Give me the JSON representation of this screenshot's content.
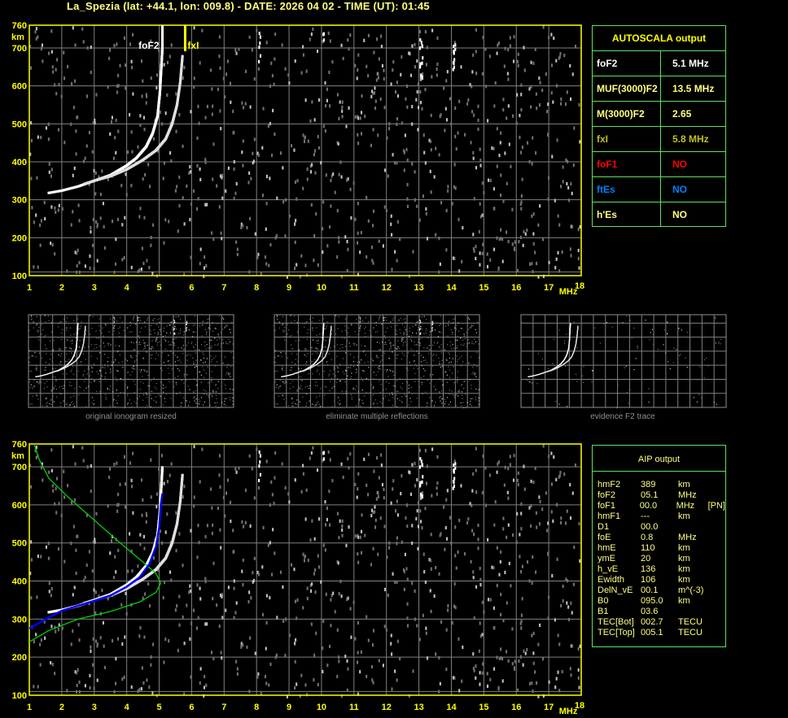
{
  "title": "La_Spezia (lat: +44.1, lon: 009.8) - DATE: 2026 04 02 - TIME (UT): 01:45",
  "colors": {
    "axis": "#ffff00",
    "grid": "#808080",
    "panel_border": "#60e060",
    "trace": "#ffffff",
    "fit": "#0000ff",
    "profile": "#00d000"
  },
  "chart_data": [
    {
      "type": "scatter",
      "name_hint": "ionogram",
      "xlabel": "MHz",
      "ylabel": "km",
      "xlim": [
        1,
        18
      ],
      "ylim": [
        100,
        760
      ],
      "xticks": [
        "1",
        "2",
        "3",
        "4",
        "5",
        "6",
        "7",
        "8",
        "9",
        "10",
        "11",
        "12",
        "13",
        "14",
        "15",
        "16",
        "17",
        "18"
      ],
      "yticks": [
        "100",
        "200",
        "300",
        "400",
        "500",
        "600",
        "700",
        "760"
      ],
      "grid": true,
      "markers": [
        {
          "label": "foF2",
          "x": 5.1,
          "color": "#ffffff"
        },
        {
          "label": "fxI",
          "x": 5.8,
          "color": "#ffff00"
        }
      ],
      "o_trace": [
        [
          1.6,
          318
        ],
        [
          2.0,
          324
        ],
        [
          2.5,
          335
        ],
        [
          3.0,
          350
        ],
        [
          3.5,
          365
        ],
        [
          4.0,
          390
        ],
        [
          4.3,
          410
        ],
        [
          4.6,
          440
        ],
        [
          4.8,
          475
        ],
        [
          4.95,
          520
        ],
        [
          5.02,
          580
        ],
        [
          5.06,
          640
        ],
        [
          5.1,
          700
        ]
      ],
      "x_trace": [
        [
          2.7,
          342
        ],
        [
          3.0,
          350
        ],
        [
          3.5,
          362
        ],
        [
          4.0,
          380
        ],
        [
          4.5,
          405
        ],
        [
          4.9,
          430
        ],
        [
          5.2,
          460
        ],
        [
          5.4,
          500
        ],
        [
          5.55,
          550
        ],
        [
          5.65,
          610
        ],
        [
          5.72,
          680
        ]
      ]
    },
    {
      "type": "line",
      "fit_trace": [
        [
          1.0,
          275
        ],
        [
          1.5,
          300
        ],
        [
          2.0,
          322
        ],
        [
          2.5,
          335
        ],
        [
          3.0,
          348
        ],
        [
          3.5,
          362
        ],
        [
          4.0,
          385
        ],
        [
          4.4,
          410
        ],
        [
          4.7,
          445
        ],
        [
          4.9,
          490
        ],
        [
          5.0,
          540
        ],
        [
          5.05,
          600
        ],
        [
          5.1,
          630
        ]
      ],
      "profile": [
        [
          1.15,
          760
        ],
        [
          1.3,
          720
        ],
        [
          1.6,
          670
        ],
        [
          2.2,
          620
        ],
        [
          3.0,
          560
        ],
        [
          3.8,
          500
        ],
        [
          4.5,
          450
        ],
        [
          4.9,
          420
        ],
        [
          5.05,
          395
        ],
        [
          4.9,
          370
        ],
        [
          4.4,
          345
        ],
        [
          3.5,
          320
        ],
        [
          2.5,
          300
        ],
        [
          1.6,
          270
        ],
        [
          1.0,
          240
        ]
      ]
    }
  ],
  "thumbnails": [
    "original ionogram resized",
    "eliminate multiple reflections",
    "evidence F2 trace"
  ],
  "autoscala": {
    "header": "AUTOSCALA output",
    "rows": [
      {
        "key": "foF2",
        "value": "5.1 MHz",
        "color": "#ffffff"
      },
      {
        "key": "MUF(3000)F2",
        "value": "13.5 MHz",
        "color": "#ffff80"
      },
      {
        "key": "M(3000)F2",
        "value": "2.65",
        "color": "#ffff80"
      },
      {
        "key": "fxI",
        "value": "5.8 MHz",
        "color": "#c0c020"
      },
      {
        "key": "foF1",
        "value": "NO",
        "color": "#ff0000"
      },
      {
        "key": "ftEs",
        "value": "NO",
        "color": "#0080ff"
      },
      {
        "key": "h'Es",
        "value": "NO",
        "color": "#ffff80"
      }
    ]
  },
  "aip": {
    "header": "AIP output",
    "rows": [
      [
        "hmF2",
        "389",
        "km",
        ""
      ],
      [
        "foF2",
        "05.1",
        "MHz",
        ""
      ],
      [
        "foF1",
        "00.0",
        "MHz",
        "[PN]"
      ],
      [
        "hmF1",
        "---",
        "km",
        ""
      ],
      [
        "D1",
        "00.0",
        "",
        ""
      ],
      [
        "foE",
        "0.8",
        "MHz",
        ""
      ],
      [
        "hmE",
        "110",
        "km",
        ""
      ],
      [
        "ymE",
        "20",
        "km",
        ""
      ],
      [
        "h_vE",
        "136",
        "km",
        ""
      ],
      [
        "Ewidth",
        "106",
        "km",
        ""
      ],
      [
        "DelN_vE",
        "00.1",
        "m^(-3)",
        ""
      ],
      [
        "B0",
        "095.0",
        "km",
        ""
      ],
      [
        "B1",
        "03.6",
        "",
        ""
      ],
      [
        "TEC[Bot]",
        "002.7",
        "TECU",
        ""
      ],
      [
        "TEC[Top]",
        "005.1",
        "TECU",
        ""
      ]
    ]
  }
}
